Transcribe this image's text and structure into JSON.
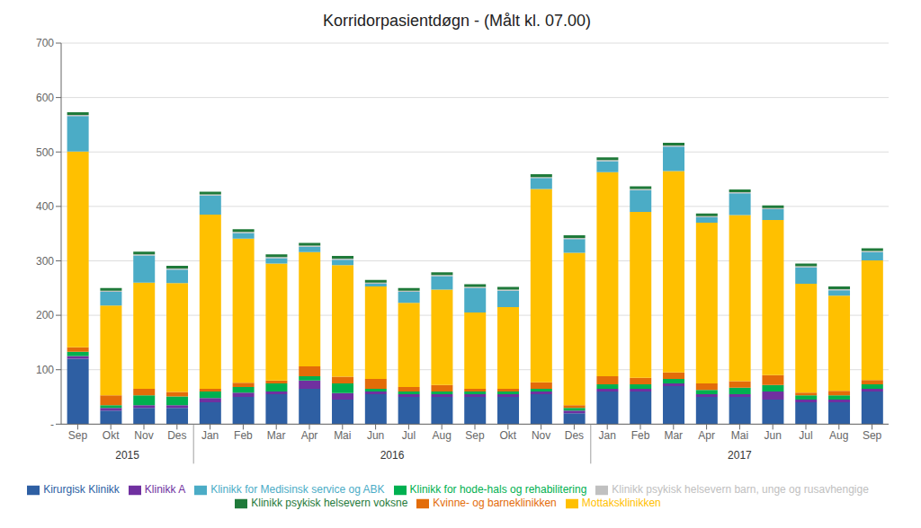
{
  "chart_data": {
    "type": "bar",
    "stacked": true,
    "title": "Korridorpasientdøgn - (Målt kl. 07.00)",
    "categories": [
      "Sep",
      "Okt",
      "Nov",
      "Des",
      "Jan",
      "Feb",
      "Mar",
      "Apr",
      "Mai",
      "Jun",
      "Jul",
      "Aug",
      "Sep",
      "Okt",
      "Nov",
      "Des",
      "Jan",
      "Feb",
      "Mar",
      "Apr",
      "Mai",
      "Jun",
      "Jul",
      "Aug",
      "Sep"
    ],
    "annotations": [
      {
        "text": "2015",
        "start": 0,
        "end": 3
      },
      {
        "text": "2016",
        "start": 4,
        "end": 15
      },
      {
        "text": "2017",
        "start": 16,
        "end": 24
      }
    ],
    "series": [
      {
        "name": "Kirurgisk Klinikk",
        "color": "#2E5FA3",
        "values": [
          120,
          25,
          30,
          30,
          40,
          50,
          55,
          65,
          45,
          55,
          50,
          50,
          50,
          50,
          55,
          20,
          60,
          60,
          70,
          50,
          50,
          45,
          40,
          40,
          60
        ]
      },
      {
        "name": "Klinikk A",
        "color": "#7030A0",
        "values": [
          5,
          5,
          5,
          5,
          8,
          8,
          5,
          15,
          12,
          5,
          5,
          5,
          5,
          5,
          5,
          5,
          5,
          5,
          5,
          5,
          5,
          15,
          5,
          5,
          5
        ]
      },
      {
        "name": "Klinikk for hode-hals og rehabilitering",
        "color": "#00B050",
        "values": [
          8,
          5,
          18,
          16,
          12,
          10,
          15,
          8,
          18,
          5,
          5,
          5,
          5,
          5,
          5,
          5,
          8,
          8,
          8,
          8,
          12,
          12,
          8,
          8,
          8
        ]
      },
      {
        "name": "Kvinne- og barneklinikken",
        "color": "#E36C09",
        "values": [
          8,
          18,
          12,
          8,
          5,
          8,
          5,
          18,
          12,
          18,
          8,
          12,
          5,
          5,
          12,
          5,
          15,
          12,
          12,
          12,
          12,
          18,
          5,
          8,
          8
        ]
      },
      {
        "name": "Mottaksklinikken",
        "color": "#FFC000",
        "values": [
          360,
          165,
          195,
          200,
          320,
          265,
          215,
          210,
          205,
          170,
          155,
          175,
          140,
          150,
          355,
          280,
          375,
          305,
          370,
          295,
          305,
          285,
          200,
          175,
          220
        ]
      },
      {
        "name": "Klinikk for Medisinsk service og ABK",
        "color": "#4BACC6",
        "values": [
          65,
          25,
          50,
          25,
          35,
          10,
          10,
          10,
          10,
          5,
          20,
          25,
          45,
          30,
          20,
          25,
          20,
          40,
          45,
          10,
          40,
          20,
          30,
          10,
          15
        ]
      },
      {
        "name": "Klinikk psykisk helsevern barn, unge og rusavhengige",
        "color": "#C0C0C0",
        "values": [
          2,
          2,
          2,
          2,
          2,
          2,
          2,
          2,
          2,
          2,
          2,
          2,
          2,
          2,
          2,
          2,
          2,
          2,
          2,
          2,
          2,
          2,
          2,
          2,
          2
        ]
      },
      {
        "name": "Klinikk psykisk helsevern voksne",
        "color": "#1F7A3A",
        "values": [
          5,
          5,
          5,
          5,
          5,
          5,
          5,
          5,
          5,
          5,
          5,
          5,
          5,
          5,
          5,
          5,
          5,
          5,
          5,
          5,
          5,
          5,
          5,
          5,
          5
        ]
      }
    ],
    "ylim": [
      0,
      700
    ],
    "yticks": [
      {
        "value": 0,
        "label": "-"
      },
      100,
      200,
      300,
      400,
      500,
      600,
      700
    ],
    "grid": true,
    "legend": "bottom"
  }
}
